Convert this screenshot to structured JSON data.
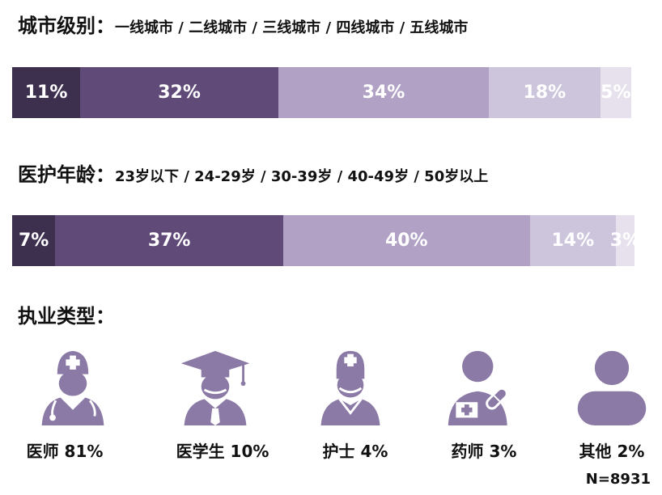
{
  "colors": {
    "dark1": "#3d2f4e",
    "dark2": "#5f4a78",
    "mid": "#b0a1c5",
    "light": "#cdc5dc",
    "lightest": "#e6e1ec",
    "icon": "#8c7aa6"
  },
  "chart_data": [
    {
      "type": "bar",
      "stacked": true,
      "orientation": "horizontal",
      "title_label": "城市级别：",
      "categories_text": "一线城市 / 二线城市 / 三线城市 / 四线城市 / 五线城市",
      "categories": [
        "一线城市",
        "二线城市",
        "三线城市",
        "四线城市",
        "五线城市"
      ],
      "values": [
        11,
        32,
        34,
        18,
        5
      ],
      "labels": [
        "11%",
        "32%",
        "34%",
        "18%",
        "5%"
      ]
    },
    {
      "type": "bar",
      "stacked": true,
      "orientation": "horizontal",
      "title_label": "医护年龄：",
      "categories_text": "23岁以下 / 24-29岁 / 30-39岁 / 40-49岁 / 50岁以上",
      "categories": [
        "23岁以下",
        "24-29岁",
        "30-39岁",
        "40-49岁",
        "50岁以上"
      ],
      "values": [
        7,
        37,
        40,
        14,
        3
      ],
      "labels": [
        "7%",
        "37%",
        "40%",
        "14%",
        "3%"
      ]
    }
  ],
  "practice": {
    "title": "执业类型：",
    "items": [
      {
        "icon": "doctor-icon",
        "label": "医师 81%"
      },
      {
        "icon": "student-icon",
        "label": "医学生 10%"
      },
      {
        "icon": "nurse-icon",
        "label": "护士 4%"
      },
      {
        "icon": "pharmacist-icon",
        "label": "药师 3%"
      },
      {
        "icon": "person-icon",
        "label": "其他 2%"
      }
    ]
  },
  "sample_size": "N=8931"
}
